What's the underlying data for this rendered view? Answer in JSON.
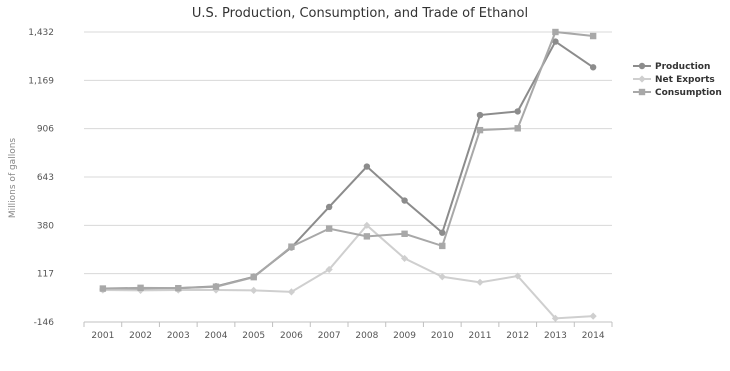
{
  "chart_data": {
    "type": "line",
    "title": "U.S. Production, Consumption, and Trade of Ethanol",
    "xlabel": "",
    "ylabel": "Millions of gallons",
    "categories": [
      "2001",
      "2002",
      "2003",
      "2004",
      "2005",
      "2006",
      "2007",
      "2008",
      "2009",
      "2010",
      "2011",
      "2012",
      "2013",
      "2014"
    ],
    "y_ticks": [
      "1,432",
      "1,169",
      "906",
      "643",
      "380",
      "117",
      "-146"
    ],
    "ylim": [
      -146,
      1432
    ],
    "grid": true,
    "legend_position": "right",
    "series": [
      {
        "name": "Production",
        "marker": "circle",
        "color": "#8c8c8c",
        "values": [
          32,
          36,
          38,
          48,
          100,
          260,
          480,
          700,
          515,
          340,
          980,
          1000,
          1380,
          1240
        ]
      },
      {
        "name": "Net Exports",
        "marker": "diamond",
        "color": "#cfcfcf",
        "values": [
          28,
          26,
          28,
          28,
          26,
          18,
          140,
          380,
          200,
          100,
          70,
          104,
          -126,
          -114
        ]
      },
      {
        "name": "Consumption",
        "marker": "square",
        "color": "#a8a8a8",
        "values": [
          36,
          40,
          38,
          46,
          98,
          264,
          362,
          320,
          334,
          268,
          898,
          908,
          1432,
          1410
        ]
      }
    ]
  }
}
